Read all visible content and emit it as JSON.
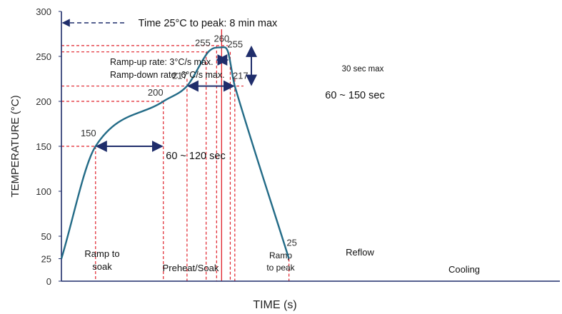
{
  "chart_data": {
    "type": "line",
    "title": "",
    "xlabel": "TIME (s)",
    "ylabel": "TEMPERATURE (°C)",
    "ylim": [
      0,
      300
    ],
    "yticks": [
      0,
      25,
      50,
      100,
      150,
      200,
      250,
      300
    ],
    "grid": false,
    "colors": {
      "curve": "#236b87",
      "guide": "#e0202a",
      "arrow": "#1f2d6b",
      "axis": "#1f2d6b",
      "text": "#303030"
    },
    "series": [
      {
        "x": [
          0,
          75,
          224,
          276,
          323,
          352,
          366,
          381,
          500
        ],
        "y": [
          25,
          150,
          200,
          217,
          255,
          260,
          255,
          217,
          25
        ]
      }
    ],
    "point_labels": [
      {
        "x": 75,
        "y": 150,
        "text": "150"
      },
      {
        "x": 224,
        "y": 200,
        "text": "200"
      },
      {
        "x": 276,
        "y": 217,
        "text": "217"
      },
      {
        "x": 323,
        "y": 255,
        "text": "255"
      },
      {
        "x": 352,
        "y": 260,
        "text": "260"
      },
      {
        "x": 366,
        "y": 255,
        "text": "255"
      },
      {
        "x": 381,
        "y": 217,
        "text": "217"
      },
      {
        "x": 500,
        "y": 25,
        "text": "25"
      }
    ],
    "annotations": {
      "time_to_peak": "Time 25°C to peak: 8 min max",
      "ramp_up": "Ramp-up rate: 3°C/s max.",
      "ramp_down": "Ramp-down rate: 6°C/s max.",
      "peak_window": "30 sec max",
      "reflow_window": "60 ~ 150 sec",
      "soak_window": "60 ~ 120 sec"
    },
    "zones": [
      {
        "lines": [
          "Ramp to",
          "soak"
        ]
      },
      {
        "lines": [
          "Preheat/Soak"
        ]
      },
      {
        "lines": [
          "Ramp",
          "to peak"
        ]
      },
      {
        "lines": [
          "Reflow"
        ]
      },
      {
        "lines": [
          "Cooling"
        ]
      }
    ]
  }
}
